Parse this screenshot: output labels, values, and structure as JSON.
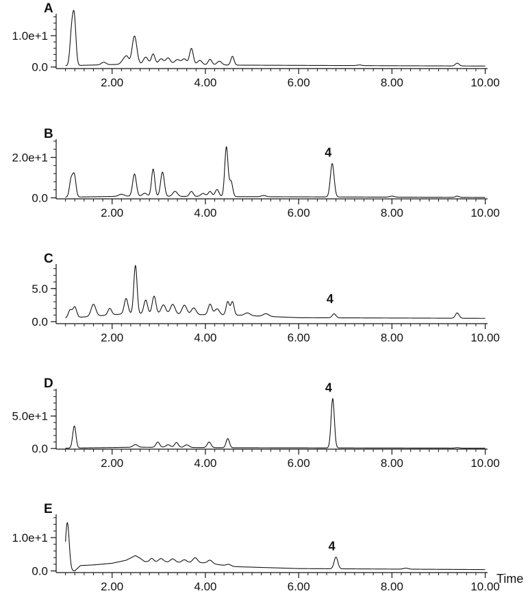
{
  "chart_data": [
    {
      "type": "line",
      "panel_label": "A",
      "xlim": [
        0.8,
        10.05
      ],
      "ylim": [
        -0.5,
        17
      ],
      "y_ticks": [
        {
          "value": 0,
          "label": "0.0"
        },
        {
          "value": 10,
          "label": "1.0e+1"
        }
      ],
      "x_ticks": [
        {
          "value": 2,
          "label": "2.00"
        },
        {
          "value": 4,
          "label": "4.00"
        },
        {
          "value": 6,
          "label": "6.00"
        },
        {
          "value": 8,
          "label": "8.00"
        },
        {
          "value": 10,
          "label": "10.00"
        }
      ],
      "xlabel": "",
      "baseline": [
        [
          1.0,
          0.4
        ],
        [
          2.3,
          0.9
        ],
        [
          4.6,
          0.6
        ],
        [
          10.0,
          0.3
        ]
      ],
      "peaks": [
        [
          1.13,
          10.0,
          0.035
        ],
        [
          1.19,
          14.5,
          0.035
        ],
        [
          1.82,
          0.8,
          0.05
        ],
        [
          2.25,
          1.5,
          0.05
        ],
        [
          2.32,
          2.0,
          0.04
        ],
        [
          2.48,
          9.0,
          0.05
        ],
        [
          2.72,
          2.3,
          0.05
        ],
        [
          2.88,
          3.3,
          0.04
        ],
        [
          3.05,
          1.8,
          0.05
        ],
        [
          3.2,
          2.1,
          0.05
        ],
        [
          3.4,
          1.6,
          0.06
        ],
        [
          3.55,
          1.8,
          0.05
        ],
        [
          3.7,
          5.2,
          0.04
        ],
        [
          3.88,
          1.4,
          0.05
        ],
        [
          4.1,
          1.8,
          0.04
        ],
        [
          4.3,
          1.2,
          0.05
        ],
        [
          4.58,
          2.8,
          0.035
        ],
        [
          7.3,
          0.2,
          0.05
        ],
        [
          9.4,
          0.9,
          0.04
        ]
      ],
      "peak_annotations": []
    },
    {
      "type": "line",
      "panel_label": "B",
      "xlim": [
        0.8,
        10.05
      ],
      "ylim": [
        -0.5,
        29
      ],
      "y_ticks": [
        {
          "value": 0,
          "label": "0.0"
        },
        {
          "value": 20,
          "label": "2.0e+1"
        }
      ],
      "x_ticks": [
        {
          "value": 2,
          "label": "2.00"
        },
        {
          "value": 4,
          "label": "4.00"
        },
        {
          "value": 6,
          "label": "6.00"
        },
        {
          "value": 8,
          "label": "8.00"
        },
        {
          "value": 10,
          "label": "10.00"
        }
      ],
      "xlabel": "",
      "baseline": [
        [
          1.0,
          0.3
        ],
        [
          2.3,
          0.8
        ],
        [
          4.6,
          0.6
        ],
        [
          10.0,
          0.2
        ]
      ],
      "peaks": [
        [
          1.12,
          8.5,
          0.035
        ],
        [
          1.19,
          10.5,
          0.035
        ],
        [
          2.2,
          1.0,
          0.06
        ],
        [
          2.48,
          11.0,
          0.04
        ],
        [
          2.7,
          1.5,
          0.05
        ],
        [
          2.88,
          13.5,
          0.035
        ],
        [
          3.08,
          12.0,
          0.04
        ],
        [
          3.35,
          2.5,
          0.05
        ],
        [
          3.7,
          2.5,
          0.04
        ],
        [
          3.95,
          1.5,
          0.05
        ],
        [
          4.1,
          2.5,
          0.04
        ],
        [
          4.25,
          3.5,
          0.04
        ],
        [
          4.45,
          24.5,
          0.035
        ],
        [
          4.55,
          7.5,
          0.035
        ],
        [
          5.25,
          0.6,
          0.05
        ],
        [
          6.72,
          16.5,
          0.04
        ],
        [
          8.0,
          0.5,
          0.05
        ],
        [
          9.4,
          0.6,
          0.04
        ]
      ],
      "peak_annotations": [
        {
          "x": 6.72,
          "text": "4"
        }
      ]
    },
    {
      "type": "line",
      "panel_label": "C",
      "xlim": [
        0.8,
        10.05
      ],
      "ylim": [
        -0.3,
        8.7
      ],
      "y_ticks": [
        {
          "value": 0,
          "label": "0.0"
        },
        {
          "value": 5,
          "label": "5.0"
        }
      ],
      "x_ticks": [
        {
          "value": 2,
          "label": "2.00"
        },
        {
          "value": 4,
          "label": "4.00"
        },
        {
          "value": 6,
          "label": "6.00"
        },
        {
          "value": 8,
          "label": "8.00"
        },
        {
          "value": 10,
          "label": "10.00"
        }
      ],
      "xlabel": "",
      "baseline": [
        [
          1.0,
          0.5
        ],
        [
          2.3,
          1.2
        ],
        [
          4.6,
          1.0
        ],
        [
          6.0,
          0.6
        ],
        [
          10.0,
          0.5
        ]
      ],
      "peaks": [
        [
          1.1,
          1.2,
          0.04
        ],
        [
          1.2,
          1.6,
          0.04
        ],
        [
          1.6,
          1.8,
          0.05
        ],
        [
          1.95,
          1.0,
          0.04
        ],
        [
          2.3,
          2.3,
          0.04
        ],
        [
          2.5,
          7.3,
          0.035
        ],
        [
          2.72,
          2.1,
          0.04
        ],
        [
          2.9,
          2.7,
          0.04
        ],
        [
          3.1,
          1.4,
          0.05
        ],
        [
          3.3,
          1.5,
          0.05
        ],
        [
          3.55,
          1.4,
          0.05
        ],
        [
          3.75,
          1.0,
          0.05
        ],
        [
          4.1,
          1.6,
          0.04
        ],
        [
          4.25,
          0.9,
          0.05
        ],
        [
          4.48,
          2.0,
          0.035
        ],
        [
          4.58,
          2.0,
          0.035
        ],
        [
          4.9,
          0.4,
          0.06
        ],
        [
          5.3,
          0.4,
          0.06
        ],
        [
          6.76,
          0.6,
          0.04
        ],
        [
          9.4,
          0.8,
          0.04
        ]
      ],
      "peak_annotations": [
        {
          "x": 6.76,
          "text": "4"
        }
      ]
    },
    {
      "type": "line",
      "panel_label": "D",
      "xlim": [
        0.8,
        10.05
      ],
      "ylim": [
        -1,
        92
      ],
      "y_ticks": [
        {
          "value": 0,
          "label": "0.0"
        },
        {
          "value": 50,
          "label": "5.0e+1"
        }
      ],
      "x_ticks": [
        {
          "value": 2,
          "label": "2.00"
        },
        {
          "value": 4,
          "label": "4.00"
        },
        {
          "value": 6,
          "label": "6.00"
        },
        {
          "value": 8,
          "label": "8.00"
        },
        {
          "value": 10,
          "label": "10.00"
        }
      ],
      "xlabel": "",
      "baseline": [
        [
          1.0,
          0.5
        ],
        [
          2.5,
          2.0
        ],
        [
          4.6,
          1.2
        ],
        [
          10.0,
          0.5
        ]
      ],
      "peaks": [
        [
          1.19,
          34.0,
          0.035
        ],
        [
          2.5,
          4.0,
          0.05
        ],
        [
          2.98,
          8.0,
          0.04
        ],
        [
          3.2,
          4.0,
          0.05
        ],
        [
          3.38,
          7.5,
          0.04
        ],
        [
          3.6,
          4.0,
          0.05
        ],
        [
          4.08,
          8.5,
          0.04
        ],
        [
          4.48,
          14.0,
          0.035
        ],
        [
          6.73,
          76.0,
          0.035
        ],
        [
          9.4,
          0.8,
          0.04
        ]
      ],
      "peak_annotations": [
        {
          "x": 6.73,
          "text": "4"
        }
      ]
    },
    {
      "type": "line",
      "panel_label": "E",
      "xlim": [
        0.8,
        10.05
      ],
      "ylim": [
        -0.5,
        17
      ],
      "y_ticks": [
        {
          "value": 0,
          "label": "0.0"
        },
        {
          "value": 10,
          "label": "1.0e+1"
        }
      ],
      "x_ticks": [
        {
          "value": 2,
          "label": "2.00"
        },
        {
          "value": 4,
          "label": "4.00"
        },
        {
          "value": 6,
          "label": "6.00"
        },
        {
          "value": 8,
          "label": "8.00"
        },
        {
          "value": 10,
          "label": "10.00"
        }
      ],
      "xlabel": "Time",
      "baseline": [
        [
          1.0,
          0.0
        ],
        [
          1.2,
          0.0
        ],
        [
          1.32,
          1.6
        ],
        [
          1.6,
          1.8
        ],
        [
          2.0,
          2.3
        ],
        [
          2.3,
          3.2
        ],
        [
          2.5,
          4.6
        ],
        [
          2.6,
          3.8
        ],
        [
          2.7,
          2.8
        ],
        [
          4.0,
          2.4
        ],
        [
          4.6,
          1.3
        ],
        [
          6.0,
          0.7
        ],
        [
          10.0,
          0.4
        ]
      ],
      "peaks": [
        [
          1.04,
          14.5,
          0.04
        ],
        [
          2.85,
          1.0,
          0.04
        ],
        [
          3.05,
          1.0,
          0.05
        ],
        [
          3.3,
          1.0,
          0.05
        ],
        [
          3.55,
          0.8,
          0.05
        ],
        [
          3.78,
          1.5,
          0.05
        ],
        [
          4.1,
          1.0,
          0.05
        ],
        [
          4.5,
          0.5,
          0.05
        ],
        [
          6.8,
          3.5,
          0.04
        ],
        [
          8.3,
          0.3,
          0.05
        ]
      ],
      "peak_annotations": [
        {
          "x": 6.8,
          "text": "4"
        }
      ]
    }
  ]
}
